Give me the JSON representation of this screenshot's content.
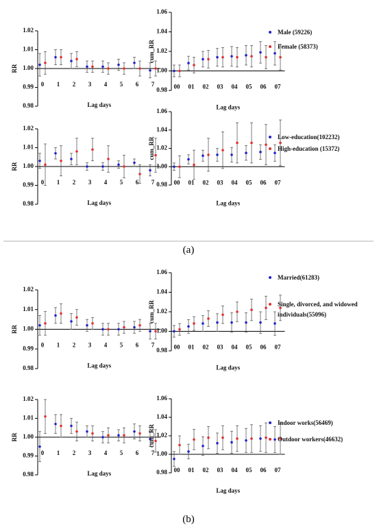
{
  "panel_labels": [
    "(a)",
    "(b)"
  ],
  "chart_data": [
    {
      "type": "errorbar",
      "ylabel": "RR",
      "xlabel": "Lag days",
      "categories": [
        "0",
        "1",
        "2",
        "3",
        "4",
        "5",
        "6",
        "7"
      ],
      "ylim": [
        0.98,
        1.02
      ],
      "yticks": [
        0.98,
        0.99,
        {
          "value": 1,
          "label": "1.00"
        },
        1.01,
        1.02
      ],
      "series": [
        {
          "name": "Male (59226)",
          "color": "#2222c8",
          "values": [
            1.002,
            1.006,
            1.004,
            1.001,
            1.001,
            1.002,
            1.003,
            0.999
          ],
          "errors": [
            0.006,
            0.004,
            0.004,
            0.003,
            0.003,
            0.003,
            0.003,
            0.004
          ]
        },
        {
          "name": "Female (58373)",
          "color": "#e03030",
          "values": [
            1.003,
            1.006,
            1.005,
            1.001,
            1.0,
            1.0,
            1.0,
            1.0
          ],
          "errors": [
            0.006,
            0.004,
            0.004,
            0.003,
            0.003,
            0.003,
            0.004,
            0.004
          ]
        }
      ]
    },
    {
      "type": "errorbar",
      "ylabel": "cum_RR",
      "xlabel": "Lag days",
      "categories": [
        "00",
        "01",
        "02",
        "03",
        "04",
        "05",
        "06",
        "07"
      ],
      "ylim": [
        0.98,
        1.06
      ],
      "yticks": [
        0.98,
        {
          "value": 1,
          "label": "1.00"
        },
        1.02,
        1.04,
        1.06
      ],
      "series": [
        {
          "name": "Male (59226)",
          "color": "#2222c8",
          "values": [
            1.0,
            1.008,
            1.012,
            1.014,
            1.015,
            1.016,
            1.019,
            1.018
          ],
          "errors": [
            0.006,
            0.007,
            0.008,
            0.009,
            0.01,
            0.01,
            0.011,
            0.012
          ]
        },
        {
          "name": "Female (58373)",
          "color": "#e03030",
          "values": [
            1.0,
            1.006,
            1.012,
            1.014,
            1.014,
            1.015,
            1.014,
            1.014
          ],
          "errors": [
            0.006,
            0.008,
            0.009,
            0.01,
            0.01,
            0.011,
            0.012,
            0.013
          ]
        }
      ]
    },
    {
      "type": "errorbar",
      "ylabel": "RR",
      "xlabel": "Lag days",
      "categories": [
        "0",
        "1",
        "2",
        "3",
        "4",
        "5",
        "6",
        "7"
      ],
      "ylim": [
        0.98,
        1.02
      ],
      "yticks": [
        0.98,
        0.99,
        {
          "value": 1,
          "label": "1.00"
        },
        1.01,
        1.02
      ],
      "series": [
        {
          "name": "Low-education(102232)",
          "color": "#2222c8",
          "values": [
            1.003,
            1.007,
            1.004,
            1.0,
            1.0,
            1.001,
            1.002,
            0.998
          ],
          "errors": [
            0.004,
            0.003,
            0.003,
            0.002,
            0.002,
            0.002,
            0.002,
            0.003
          ]
        },
        {
          "name": "High-education (15372)",
          "color": "#e03030",
          "values": [
            1.001,
            1.003,
            1.008,
            1.009,
            1.004,
            1.0,
            0.996,
            1.006
          ],
          "errors": [
            0.011,
            0.008,
            0.007,
            0.006,
            0.007,
            0.006,
            0.005,
            0.009
          ]
        }
      ]
    },
    {
      "type": "errorbar",
      "ylabel": "cum_RR",
      "xlabel": "Lag days",
      "categories": [
        "00",
        "01",
        "02",
        "03",
        "04",
        "05",
        "06",
        "07"
      ],
      "ylim": [
        0.98,
        1.06
      ],
      "yticks": [
        0.98,
        {
          "value": 1,
          "label": "1.00"
        },
        1.02,
        1.04,
        1.06
      ],
      "series": [
        {
          "name": "Low-education(102232)",
          "color": "#2222c8",
          "values": [
            1.0,
            1.008,
            1.012,
            1.013,
            1.013,
            1.015,
            1.016,
            1.015
          ],
          "errors": [
            0.004,
            0.005,
            0.006,
            0.007,
            0.008,
            0.008,
            0.008,
            0.009
          ]
        },
        {
          "name": "High-education (15372)",
          "color": "#e03030",
          "values": [
            1.0,
            1.002,
            1.013,
            1.018,
            1.026,
            1.026,
            1.024,
            1.026
          ],
          "errors": [
            0.012,
            0.016,
            0.018,
            0.02,
            0.022,
            0.022,
            0.022,
            0.025
          ]
        }
      ]
    },
    {
      "type": "errorbar",
      "ylabel": "RR",
      "xlabel": "Lag days",
      "categories": [
        "0",
        "1",
        "2",
        "3",
        "4",
        "5",
        "6",
        "7"
      ],
      "ylim": [
        0.98,
        1.02
      ],
      "yticks": [
        0.98,
        0.99,
        {
          "value": 1,
          "label": "1.00"
        },
        1.01,
        1.02
      ],
      "series": [
        {
          "name": "Married(61283)",
          "color": "#2222c8",
          "values": [
            1.002,
            1.007,
            1.004,
            1.002,
            1.0,
            1.0,
            1.001,
            0.999
          ],
          "errors": [
            0.005,
            0.004,
            0.004,
            0.003,
            0.003,
            0.003,
            0.003,
            0.004
          ]
        },
        {
          "name": "Single, divorced, and widowed individuals(55096)",
          "color": "#e03030",
          "values": [
            1.003,
            1.008,
            1.006,
            1.003,
            1.0,
            1.001,
            1.002,
            0.999
          ],
          "errors": [
            0.006,
            0.005,
            0.004,
            0.003,
            0.003,
            0.003,
            0.003,
            0.004
          ]
        }
      ]
    },
    {
      "type": "errorbar",
      "ylabel": "cum_RR",
      "xlabel": "Lag days",
      "categories": [
        "00",
        "01",
        "02",
        "03",
        "04",
        "05",
        "06",
        "07"
      ],
      "ylim": [
        0.98,
        1.06
      ],
      "yticks": [
        0.98,
        {
          "value": 1,
          "label": "1.00"
        },
        1.02,
        1.04,
        1.06
      ],
      "series": [
        {
          "name": "Married(61283)",
          "color": "#2222c8",
          "values": [
            1.0,
            1.005,
            1.008,
            1.009,
            1.009,
            1.009,
            1.009,
            1.008
          ],
          "errors": [
            0.006,
            0.007,
            0.008,
            0.009,
            0.01,
            0.01,
            0.011,
            0.012
          ]
        },
        {
          "name": "Single, divorced, and widowed individuals(55096)",
          "color": "#e03030",
          "values": [
            1.002,
            1.008,
            1.013,
            1.017,
            1.02,
            1.022,
            1.024,
            1.024
          ],
          "errors": [
            0.006,
            0.007,
            0.008,
            0.009,
            0.01,
            0.011,
            0.012,
            0.013
          ]
        }
      ]
    },
    {
      "type": "errorbar",
      "ylabel": "RR",
      "xlabel": "Lag days",
      "categories": [
        "0",
        "1",
        "2",
        "3",
        "4",
        "5",
        "6",
        "7"
      ],
      "ylim": [
        0.98,
        1.02
      ],
      "yticks": [
        0.98,
        0.99,
        {
          "value": 1,
          "label": "1.00"
        },
        1.01,
        1.02
      ],
      "series": [
        {
          "name": "Indoor works(56469)",
          "color": "#2222c8",
          "values": [
            0.995,
            1.007,
            1.006,
            1.003,
            1.0,
            1.001,
            1.003,
            0.999
          ],
          "errors": [
            0.008,
            0.005,
            0.004,
            0.003,
            0.003,
            0.003,
            0.004,
            0.004
          ]
        },
        {
          "name": "Outdoor workers(46632)",
          "color": "#e03030",
          "values": [
            1.011,
            1.006,
            1.003,
            1.002,
            1.001,
            1.001,
            1.002,
            0.998
          ],
          "errors": [
            0.009,
            0.006,
            0.005,
            0.004,
            0.004,
            0.004,
            0.004,
            0.006
          ]
        }
      ]
    },
    {
      "type": "errorbar",
      "ylabel": "cum_RR",
      "xlabel": "Lag days",
      "categories": [
        "00",
        "01",
        "02",
        "03",
        "04",
        "05",
        "06",
        "07"
      ],
      "ylim": [
        0.98,
        1.06
      ],
      "yticks": [
        0.98,
        {
          "value": 1,
          "label": "1.00"
        },
        1.02,
        1.04,
        1.06
      ],
      "series": [
        {
          "name": "Indoor works(56469)",
          "color": "#2222c8",
          "values": [
            0.995,
            1.003,
            1.009,
            1.012,
            1.013,
            1.015,
            1.017,
            1.016
          ],
          "errors": [
            0.008,
            0.008,
            0.01,
            0.011,
            0.012,
            0.013,
            0.014,
            0.014
          ]
        },
        {
          "name": "Outdoor workers(46632)",
          "color": "#e03030",
          "values": [
            1.01,
            1.016,
            1.018,
            1.018,
            1.017,
            1.017,
            1.018,
            1.017
          ],
          "errors": [
            0.01,
            0.011,
            0.012,
            0.013,
            0.014,
            0.015,
            0.016,
            0.017
          ]
        }
      ]
    }
  ]
}
